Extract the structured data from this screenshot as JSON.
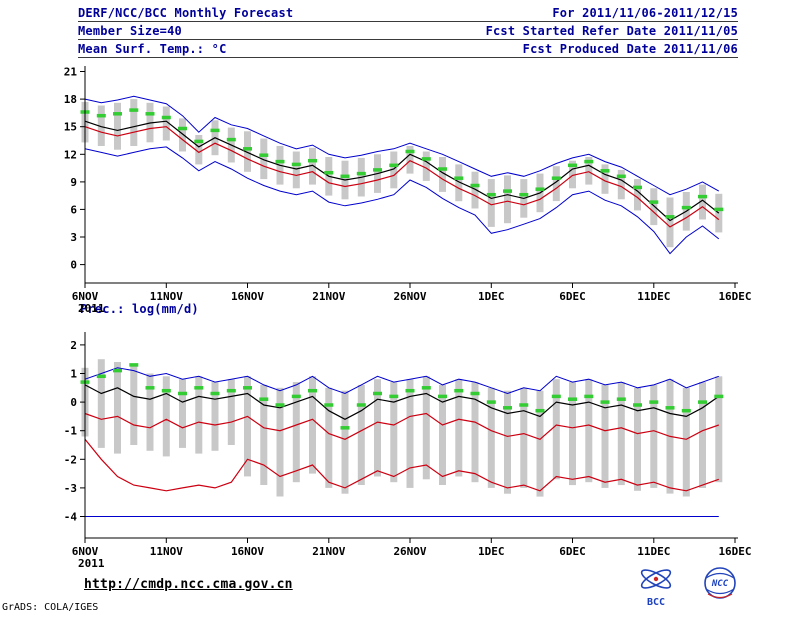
{
  "header": {
    "title": "DERF/NCC/BCC Monthly Forecast",
    "period": "For 2011/11/06-2011/12/15",
    "member_size": "Member Size=40",
    "refer_date": "Fcst Started Refer Date 2011/11/05",
    "variable": "Mean Surf. Temp.: °C",
    "produced_date": "Fcst Produced Date 2011/11/06"
  },
  "precip_label": "Prec.: log(mm/d)",
  "footer": {
    "url": "http://cmdp.ncc.cma.gov.cn",
    "credit": "GrADS: COLA/IGES",
    "bcc_label": "BCC",
    "ncc_label": "NCC"
  },
  "colors": {
    "envelope_blue": "#0000cc",
    "red_line": "#cc0011",
    "mean_black": "#000000",
    "highlight_green": "#33cc33",
    "spread_gray": "#c8c8c8",
    "header_navy": "#000099"
  },
  "chart_data": [
    {
      "type": "line",
      "name": "temperature",
      "title": "Mean Surf. Temp.: °C",
      "n_days": 40,
      "ylim": [
        -2,
        21.6
      ],
      "yticks": [
        0,
        3,
        6,
        9,
        12,
        15,
        18,
        21
      ],
      "x_tick_days": [
        0,
        5,
        10,
        15,
        20,
        25,
        30,
        35,
        40
      ],
      "x_tick_labels": [
        "6NOV",
        "11NOV",
        "16NOV",
        "21NOV",
        "26NOV",
        "1DEC",
        "6DEC",
        "11DEC",
        "16DEC"
      ],
      "x_sub_label": "2011",
      "bars": {
        "color": "#c8c8c8",
        "high": [
          17.7,
          17.3,
          17.6,
          18.0,
          17.6,
          17.2,
          15.9,
          14.1,
          15.7,
          14.9,
          14.5,
          13.7,
          12.9,
          12.3,
          12.7,
          11.7,
          11.3,
          11.6,
          12.0,
          12.3,
          12.9,
          12.3,
          11.7,
          10.9,
          10.1,
          9.3,
          9.7,
          9.3,
          9.9,
          10.7,
          11.3,
          11.7,
          10.9,
          10.3,
          9.3,
          8.3,
          7.3,
          7.9,
          8.7,
          7.7
        ],
        "low": [
          13.3,
          12.9,
          12.5,
          12.9,
          13.3,
          13.5,
          12.3,
          10.9,
          11.9,
          11.1,
          10.1,
          9.3,
          8.7,
          8.3,
          8.7,
          7.5,
          7.1,
          7.4,
          7.8,
          8.3,
          9.9,
          9.1,
          7.9,
          6.9,
          6.1,
          4.1,
          4.5,
          5.1,
          5.7,
          6.9,
          8.3,
          8.7,
          7.7,
          7.1,
          5.9,
          4.3,
          1.9,
          3.7,
          4.9,
          3.5
        ]
      },
      "series": [
        {
          "name": "ensemble-max",
          "color": "#0000cc",
          "width": 1,
          "values": [
            18.0,
            17.6,
            17.9,
            18.3,
            17.9,
            17.5,
            16.2,
            14.4,
            16.0,
            15.2,
            14.8,
            14.0,
            13.2,
            12.6,
            13.0,
            12.0,
            11.6,
            11.9,
            12.3,
            12.6,
            13.2,
            12.6,
            12.0,
            11.2,
            10.4,
            9.6,
            10.0,
            9.6,
            10.2,
            11.0,
            11.6,
            12.0,
            11.2,
            10.6,
            9.6,
            8.6,
            7.6,
            8.2,
            9.0,
            8.0
          ]
        },
        {
          "name": "ensemble-min",
          "color": "#0000cc",
          "width": 1,
          "values": [
            12.6,
            12.2,
            11.8,
            12.2,
            12.6,
            12.8,
            11.6,
            10.2,
            11.2,
            10.4,
            9.4,
            8.6,
            8.0,
            7.6,
            8.0,
            6.8,
            6.4,
            6.7,
            7.1,
            7.6,
            9.2,
            8.4,
            7.2,
            6.2,
            5.4,
            3.4,
            3.8,
            4.4,
            5.0,
            6.2,
            7.6,
            8.0,
            7.0,
            6.4,
            5.2,
            3.6,
            1.2,
            3.0,
            4.2,
            2.8
          ]
        },
        {
          "name": "red-median",
          "color": "#cc0011",
          "width": 1.2,
          "values": [
            15.0,
            14.4,
            14.0,
            14.4,
            14.8,
            15.0,
            13.6,
            12.2,
            13.2,
            12.4,
            11.5,
            10.7,
            10.1,
            9.7,
            10.1,
            8.9,
            8.5,
            8.8,
            9.2,
            9.7,
            11.3,
            10.5,
            9.3,
            8.3,
            7.5,
            6.5,
            6.9,
            6.5,
            7.1,
            8.3,
            9.7,
            10.1,
            9.1,
            8.5,
            7.3,
            5.7,
            4.1,
            5.1,
            6.3,
            4.9
          ]
        },
        {
          "name": "ensemble-mean",
          "color": "#000000",
          "width": 1.2,
          "values": [
            15.6,
            15.0,
            14.6,
            15.0,
            15.4,
            15.6,
            14.2,
            12.8,
            13.8,
            13.0,
            12.2,
            11.4,
            10.8,
            10.4,
            10.8,
            9.6,
            9.2,
            9.5,
            9.9,
            10.4,
            12.0,
            11.2,
            10.0,
            9.0,
            8.2,
            7.2,
            7.6,
            7.2,
            7.8,
            9.0,
            10.4,
            10.8,
            9.8,
            9.2,
            8.0,
            6.4,
            4.8,
            5.8,
            7.0,
            5.6
          ]
        }
      ],
      "dashes": {
        "name": "green-highlight",
        "color": "#33cc33",
        "width": 3.5,
        "len": 9,
        "values": [
          16.6,
          16.2,
          16.4,
          16.8,
          16.4,
          16.0,
          14.8,
          13.4,
          14.6,
          13.6,
          12.6,
          11.9,
          11.2,
          10.9,
          11.3,
          10.0,
          9.6,
          9.9,
          10.3,
          10.8,
          12.3,
          11.5,
          10.4,
          9.4,
          8.6,
          7.6,
          8.0,
          7.6,
          8.2,
          9.4,
          10.8,
          11.2,
          10.2,
          9.6,
          8.4,
          6.8,
          5.2,
          6.2,
          7.4,
          6.0
        ]
      }
    },
    {
      "type": "line",
      "name": "precipitation",
      "title": "Prec.: log(mm/d)",
      "n_days": 40,
      "ylim": [
        -4.75,
        2.45
      ],
      "yticks": [
        -4,
        -3,
        -2,
        -1,
        0,
        1,
        2
      ],
      "x_tick_days": [
        0,
        5,
        10,
        15,
        20,
        25,
        30,
        35,
        40
      ],
      "x_tick_labels": [
        "6NOV",
        "11NOV",
        "16NOV",
        "21NOV",
        "26NOV",
        "1DEC",
        "6DEC",
        "11DEC",
        "16DEC"
      ],
      "x_sub_label": "2011",
      "baseline": {
        "name": "zero-precip-floor",
        "color": "#0000cc",
        "value": -4
      },
      "bars": {
        "color": "#c8c8c8",
        "high": [
          1.2,
          1.5,
          1.4,
          1.3,
          1.0,
          0.9,
          0.8,
          0.9,
          0.7,
          0.8,
          0.9,
          0.6,
          0.5,
          0.7,
          0.9,
          0.5,
          0.4,
          0.6,
          0.8,
          0.7,
          0.8,
          0.9,
          0.6,
          0.8,
          0.7,
          0.5,
          0.4,
          0.5,
          0.4,
          0.8,
          0.7,
          0.8,
          0.6,
          0.7,
          0.5,
          0.6,
          0.8,
          0.5,
          0.7,
          0.9
        ],
        "low": [
          -1.2,
          -1.6,
          -1.8,
          -1.5,
          -1.7,
          -1.9,
          -1.6,
          -1.8,
          -1.7,
          -1.5,
          -2.6,
          -2.9,
          -3.3,
          -2.8,
          -2.5,
          -3.0,
          -3.2,
          -2.9,
          -2.6,
          -2.8,
          -3.0,
          -2.7,
          -2.9,
          -2.6,
          -2.8,
          -3.0,
          -3.2,
          -3.0,
          -3.3,
          -2.7,
          -2.9,
          -2.8,
          -3.0,
          -2.9,
          -3.1,
          -3.0,
          -3.2,
          -3.3,
          -3.0,
          -2.8
        ]
      },
      "series": [
        {
          "name": "ensemble-max",
          "color": "#0000cc",
          "width": 1,
          "values": [
            0.8,
            1.0,
            1.2,
            1.1,
            0.9,
            1.0,
            0.8,
            0.9,
            0.7,
            0.8,
            0.9,
            0.6,
            0.4,
            0.6,
            0.9,
            0.5,
            0.3,
            0.6,
            0.9,
            0.7,
            0.8,
            0.9,
            0.6,
            0.8,
            0.7,
            0.5,
            0.3,
            0.5,
            0.4,
            0.9,
            0.7,
            0.8,
            0.6,
            0.7,
            0.5,
            0.6,
            0.8,
            0.5,
            0.7,
            0.9
          ]
        },
        {
          "name": "red-median",
          "color": "#cc0011",
          "width": 1.2,
          "values": [
            -0.4,
            -0.6,
            -0.5,
            -0.8,
            -0.9,
            -0.6,
            -0.9,
            -0.7,
            -0.8,
            -0.7,
            -0.5,
            -0.9,
            -1.0,
            -0.8,
            -0.6,
            -1.1,
            -1.3,
            -1.0,
            -0.7,
            -0.8,
            -0.5,
            -0.4,
            -0.8,
            -0.6,
            -0.7,
            -1.0,
            -1.2,
            -1.1,
            -1.3,
            -0.8,
            -0.9,
            -0.8,
            -1.0,
            -0.9,
            -1.1,
            -1.0,
            -1.2,
            -1.3,
            -1.0,
            -0.8
          ]
        },
        {
          "name": "red-lower",
          "color": "#cc0011",
          "width": 1.2,
          "values": [
            -1.3,
            -2.0,
            -2.6,
            -2.9,
            -3.0,
            -3.1,
            -3.0,
            -2.9,
            -3.0,
            -2.8,
            -2.0,
            -2.2,
            -2.6,
            -2.4,
            -2.2,
            -2.8,
            -3.0,
            -2.7,
            -2.4,
            -2.6,
            -2.3,
            -2.2,
            -2.6,
            -2.4,
            -2.5,
            -2.8,
            -3.0,
            -2.9,
            -3.1,
            -2.6,
            -2.7,
            -2.6,
            -2.8,
            -2.7,
            -2.9,
            -2.8,
            -3.0,
            -3.1,
            -2.9,
            -2.7
          ]
        },
        {
          "name": "ensemble-mean",
          "color": "#000000",
          "width": 1.2,
          "values": [
            0.6,
            0.3,
            0.5,
            0.2,
            0.1,
            0.3,
            0.0,
            0.2,
            0.1,
            0.2,
            0.3,
            -0.1,
            -0.2,
            0.0,
            0.2,
            -0.3,
            -0.6,
            -0.3,
            0.1,
            0.0,
            0.2,
            0.3,
            0.0,
            0.2,
            0.1,
            -0.2,
            -0.4,
            -0.3,
            -0.5,
            0.0,
            -0.1,
            0.0,
            -0.2,
            -0.1,
            -0.3,
            -0.2,
            -0.4,
            -0.5,
            -0.2,
            0.2
          ]
        }
      ],
      "dashes": {
        "name": "green-highlight",
        "color": "#33cc33",
        "width": 3.5,
        "len": 9,
        "values": [
          0.7,
          0.9,
          1.1,
          1.3,
          0.5,
          0.4,
          0.3,
          0.5,
          0.3,
          0.4,
          0.5,
          0.1,
          -0.1,
          0.2,
          0.4,
          -0.1,
          -0.9,
          -0.1,
          0.3,
          0.2,
          0.4,
          0.5,
          0.2,
          0.4,
          0.3,
          0.0,
          -0.2,
          -0.1,
          -0.3,
          0.2,
          0.1,
          0.2,
          0.0,
          0.1,
          -0.1,
          0.0,
          -0.2,
          -0.3,
          0.0,
          0.2
        ]
      }
    }
  ]
}
